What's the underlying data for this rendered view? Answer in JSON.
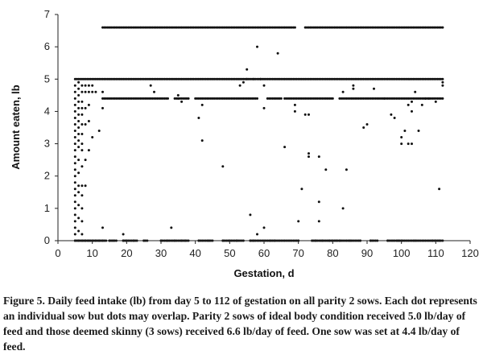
{
  "caption": "Figure 5. Daily feed intake (lb) from day 5 to 112 of gestation on all parity 2 sows. Each dot represents an individual sow but dots may overlap. Parity 2 sows of ideal body condition received 5.0 lb/day of feed and those deemed skinny (3 sows) received 6.6 lb/day of feed. One sow was set at 4.4 lb/day of feed.",
  "chart_data": {
    "type": "scatter",
    "title": "",
    "xlabel": "Gestation, d",
    "ylabel": "Amount eaten, lb",
    "xlim": [
      0,
      120
    ],
    "ylim": [
      0,
      7
    ],
    "xticks": [
      "0",
      "10",
      "20",
      "30",
      "40",
      "50",
      "60",
      "70",
      "80",
      "90",
      "100",
      "110",
      "120"
    ],
    "yticks": [
      "0",
      "1",
      "2",
      "3",
      "4",
      "5",
      "6",
      "7"
    ],
    "grid": false,
    "legend": "none",
    "marker_color": "#111111",
    "levels": [
      {
        "y": 6.6,
        "x_from": 13,
        "x_to": 112,
        "gaps": [
          [
            69,
            72
          ]
        ]
      },
      {
        "y": 5.0,
        "x_from": 5,
        "x_to": 112,
        "gaps": []
      },
      {
        "y": 4.4,
        "x_from": 13,
        "x_to": 112,
        "gaps": [
          [
            32,
            34
          ],
          [
            38,
            40
          ],
          [
            58,
            61
          ],
          [
            65,
            66
          ],
          [
            80,
            82
          ]
        ]
      }
    ],
    "points": [
      [
        5,
        0
      ],
      [
        5,
        0.2
      ],
      [
        5,
        0.4
      ],
      [
        5,
        0.6
      ],
      [
        5,
        0.8
      ],
      [
        5,
        1.0
      ],
      [
        5,
        1.2
      ],
      [
        5,
        1.4
      ],
      [
        5,
        1.6
      ],
      [
        5,
        1.8
      ],
      [
        5,
        2.0
      ],
      [
        5,
        2.2
      ],
      [
        5,
        2.4
      ],
      [
        5,
        2.6
      ],
      [
        5,
        2.8
      ],
      [
        5,
        3.0
      ],
      [
        5,
        3.2
      ],
      [
        5,
        3.4
      ],
      [
        5,
        3.6
      ],
      [
        5,
        3.8
      ],
      [
        5,
        4.0
      ],
      [
        5,
        4.2
      ],
      [
        5,
        4.4
      ],
      [
        5,
        4.6
      ],
      [
        5,
        4.8
      ],
      [
        6,
        0
      ],
      [
        6,
        0.3
      ],
      [
        6,
        0.7
      ],
      [
        6,
        1.1
      ],
      [
        6,
        1.5
      ],
      [
        6,
        1.7
      ],
      [
        6,
        2.1
      ],
      [
        6,
        2.5
      ],
      [
        6,
        2.9
      ],
      [
        6,
        3.1
      ],
      [
        6,
        3.3
      ],
      [
        6,
        3.5
      ],
      [
        6,
        3.7
      ],
      [
        6,
        3.9
      ],
      [
        6,
        4.1
      ],
      [
        6,
        4.3
      ],
      [
        6,
        4.5
      ],
      [
        6,
        4.7
      ],
      [
        6,
        4.9
      ],
      [
        7,
        0
      ],
      [
        7,
        0.2
      ],
      [
        7,
        0.6
      ],
      [
        7,
        1.0
      ],
      [
        7,
        1.4
      ],
      [
        7,
        1.7
      ],
      [
        7,
        2.3
      ],
      [
        7,
        2.8
      ],
      [
        7,
        3.0
      ],
      [
        7,
        3.3
      ],
      [
        7,
        3.6
      ],
      [
        7,
        3.9
      ],
      [
        7,
        4.1
      ],
      [
        7,
        4.3
      ],
      [
        7,
        4.6
      ],
      [
        7,
        4.8
      ],
      [
        8,
        0
      ],
      [
        8,
        1.7
      ],
      [
        8,
        2.5
      ],
      [
        8,
        3.6
      ],
      [
        8,
        4.1
      ],
      [
        8,
        4.6
      ],
      [
        8,
        4.8
      ],
      [
        9,
        0
      ],
      [
        9,
        2.8
      ],
      [
        9,
        3.7
      ],
      [
        9,
        4.2
      ],
      [
        9,
        4.6
      ],
      [
        9,
        4.8
      ],
      [
        10,
        0
      ],
      [
        10,
        3.2
      ],
      [
        10,
        4.6
      ],
      [
        10,
        4.8
      ],
      [
        11,
        0
      ],
      [
        11,
        4.6
      ],
      [
        12,
        0
      ],
      [
        12,
        3.4
      ],
      [
        13,
        0
      ],
      [
        13,
        0.4
      ],
      [
        13,
        4.6
      ],
      [
        13,
        4.1
      ],
      [
        15,
        0
      ],
      [
        16,
        0
      ],
      [
        19,
        0
      ],
      [
        19,
        0.2
      ],
      [
        20,
        0
      ],
      [
        22,
        0
      ],
      [
        25,
        0
      ],
      [
        27,
        4.8
      ],
      [
        28,
        4.6
      ],
      [
        30,
        0
      ],
      [
        32,
        0
      ],
      [
        33,
        0.4
      ],
      [
        34,
        0
      ],
      [
        35,
        4.4
      ],
      [
        35,
        4.5
      ],
      [
        36,
        0
      ],
      [
        36,
        4.3
      ],
      [
        37,
        0
      ],
      [
        41,
        0
      ],
      [
        41,
        3.8
      ],
      [
        42,
        3.1
      ],
      [
        42,
        4.2
      ],
      [
        44,
        0
      ],
      [
        48,
        0
      ],
      [
        48,
        2.3
      ],
      [
        50,
        0
      ],
      [
        52,
        0
      ],
      [
        53,
        4.8
      ],
      [
        54,
        4.9
      ],
      [
        55,
        5.0
      ],
      [
        55,
        5.3
      ],
      [
        56,
        0
      ],
      [
        56,
        0.8
      ],
      [
        57,
        0
      ],
      [
        57,
        5.0
      ],
      [
        58,
        6.0
      ],
      [
        58,
        0.2
      ],
      [
        59,
        5.0
      ],
      [
        60,
        4.8
      ],
      [
        60,
        4.1
      ],
      [
        60,
        0.4
      ],
      [
        62,
        0
      ],
      [
        63,
        0
      ],
      [
        64,
        5.8
      ],
      [
        66,
        2.9
      ],
      [
        69,
        4.0
      ],
      [
        69,
        4.2
      ],
      [
        70,
        0
      ],
      [
        70,
        0.6
      ],
      [
        71,
        1.6
      ],
      [
        72,
        3.9
      ],
      [
        73,
        2.7
      ],
      [
        73,
        2.6
      ],
      [
        73,
        3.9
      ],
      [
        74,
        0
      ],
      [
        75,
        0
      ],
      [
        76,
        2.6
      ],
      [
        76,
        1.2
      ],
      [
        76,
        0.6
      ],
      [
        77,
        0
      ],
      [
        78,
        2.2
      ],
      [
        79,
        0
      ],
      [
        80,
        0
      ],
      [
        81,
        0
      ],
      [
        82,
        0
      ],
      [
        83,
        4.6
      ],
      [
        83,
        1.0
      ],
      [
        84,
        2.2
      ],
      [
        85,
        0
      ],
      [
        86,
        4.8
      ],
      [
        86,
        4.7
      ],
      [
        88,
        0
      ],
      [
        89,
        3.5
      ],
      [
        90,
        3.6
      ],
      [
        91,
        0
      ],
      [
        92,
        4.7
      ],
      [
        95,
        4.4
      ],
      [
        96,
        0
      ],
      [
        97,
        3.9
      ],
      [
        98,
        3.8
      ],
      [
        99,
        0
      ],
      [
        100,
        3.2
      ],
      [
        100,
        3.0
      ],
      [
        100,
        0
      ],
      [
        101,
        3.4
      ],
      [
        102,
        3.0
      ],
      [
        102,
        4.2
      ],
      [
        103,
        3.0
      ],
      [
        103,
        4.3
      ],
      [
        103,
        4.0
      ],
      [
        104,
        0
      ],
      [
        104,
        4.6
      ],
      [
        105,
        3.4
      ],
      [
        106,
        4.2
      ],
      [
        107,
        4.4
      ],
      [
        108,
        4.4
      ],
      [
        109,
        0
      ],
      [
        110,
        0
      ],
      [
        110,
        4.3
      ],
      [
        111,
        1.6
      ],
      [
        111,
        0
      ],
      [
        112,
        4.8
      ],
      [
        112,
        4.9
      ]
    ],
    "marks_shown": "dots"
  }
}
